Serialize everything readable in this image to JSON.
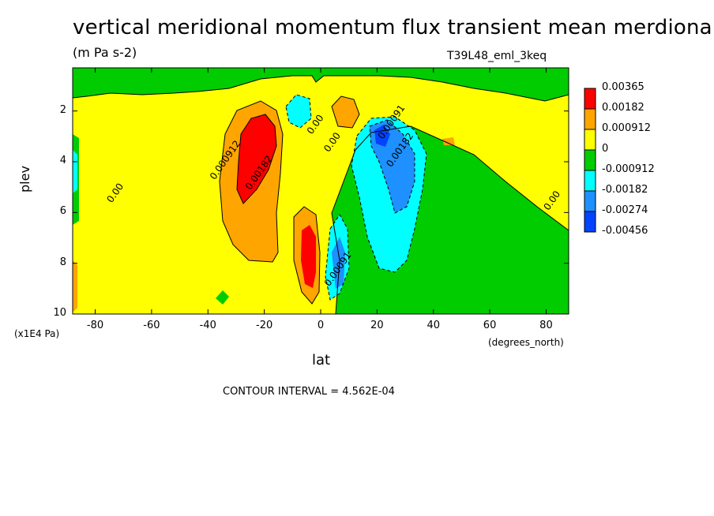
{
  "chart_data": {
    "type": "contour",
    "title": "vertical meridional momentum flux transient mean merdional",
    "units": "(m Pa s-2)",
    "run_id": "T39L48_eml_3keq",
    "xlabel": "lat",
    "x_suffix": "(degrees_north)",
    "ylabel": "plev",
    "y_suffix": "(x1E4 Pa)",
    "xlim": [
      -88,
      88
    ],
    "ylim": [
      10,
      0.3
    ],
    "x_ticks": [
      -80,
      -60,
      -40,
      -20,
      0,
      20,
      40,
      60,
      80
    ],
    "y_ticks": [
      2,
      4,
      6,
      8,
      10
    ],
    "contour_interval": "CONTOUR INTERVAL = 4.562E-04",
    "legend": {
      "position": "right",
      "levels": [
        "0.00365",
        "0.00182",
        "0.000912",
        "0",
        "-0.000912",
        "-0.00182",
        "-0.00274",
        "-0.00456"
      ],
      "colors": [
        "#ff0000",
        "#ffa500",
        "#ffff00",
        "#00cc00",
        "#00ffff",
        "#1e90ff",
        "#0044ff"
      ]
    },
    "contour_labels": [
      {
        "text": "0.00",
        "lat": -72,
        "plev": 5.3
      },
      {
        "text": "0.000912",
        "lat": -33,
        "plev": 4.0
      },
      {
        "text": "0.00182",
        "lat": -21,
        "plev": 4.5
      },
      {
        "text": "0.00",
        "lat": -1,
        "plev": 2.6
      },
      {
        "text": "0.00",
        "lat": 5,
        "plev": 3.3
      },
      {
        "text": "0.00091",
        "lat": 26,
        "plev": 2.5
      },
      {
        "text": "0.00182",
        "lat": 29,
        "plev": 3.6
      },
      {
        "text": "0.00",
        "lat": 83,
        "plev": 5.6
      },
      {
        "text": "0.00091",
        "lat": 7,
        "plev": 8.3
      }
    ]
  }
}
